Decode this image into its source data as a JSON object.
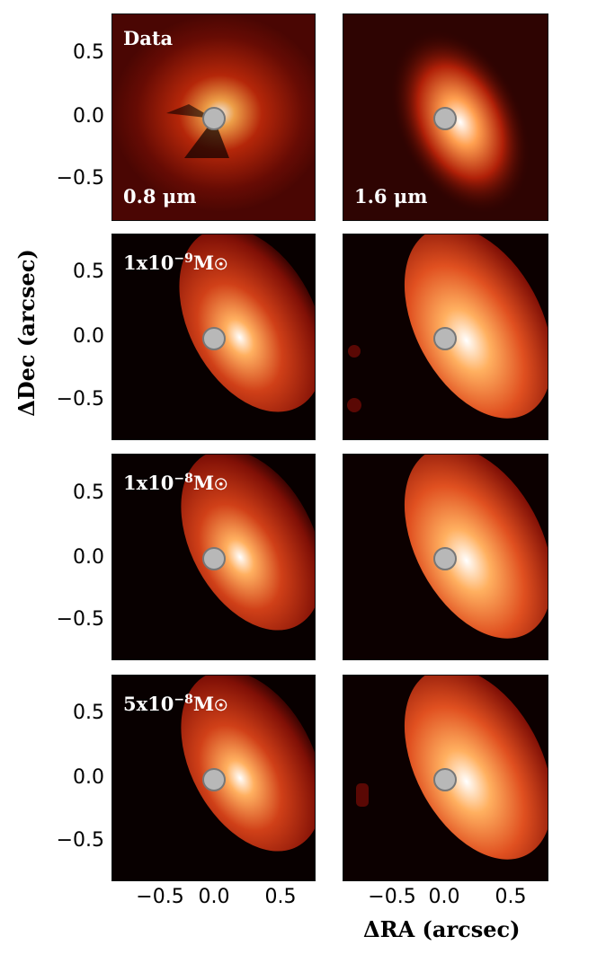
{
  "figure": {
    "xlabel_delta": "Δ",
    "xlabel_text": "RA (arcsec)",
    "ylabel_delta": "Δ",
    "ylabel_text": "Dec (arcsec)",
    "xticks": [
      "−0.5",
      "0.0",
      "0.5"
    ],
    "yticks": [
      "0.5",
      "0.0",
      "−0.5"
    ]
  },
  "panels": {
    "data_label": "Data",
    "wave_left": "0.8 μm",
    "wave_right": "1.6 μm",
    "models": [
      {
        "prefix": "1x10",
        "exp": "−9",
        "unit": "M",
        "sun": "☉"
      },
      {
        "prefix": "1x10",
        "exp": "−8",
        "unit": "M",
        "sun": "☉"
      },
      {
        "prefix": "5x10",
        "exp": "−8",
        "unit": "M",
        "sun": "☉"
      }
    ]
  },
  "colors": {
    "cmap_dark": "#1a0000",
    "cmap_mid": "#c0200a",
    "cmap_bright": "#ffb060",
    "cmap_white": "#ffffff",
    "mask": "#b8b8b8"
  }
}
